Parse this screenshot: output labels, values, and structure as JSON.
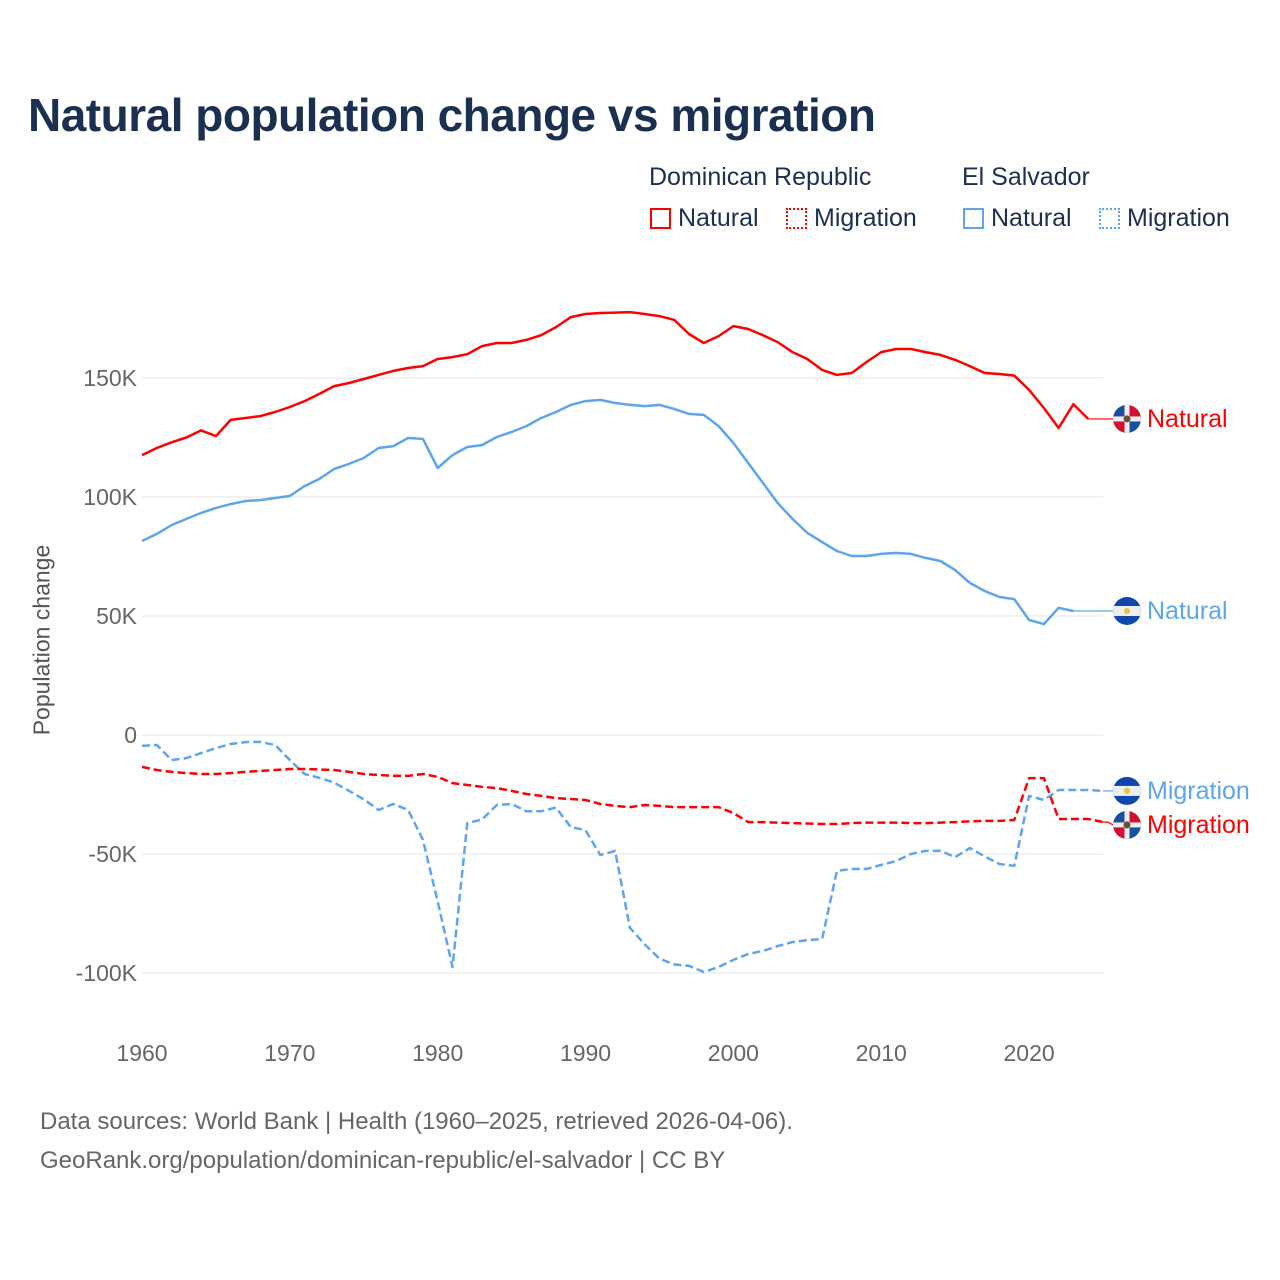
{
  "title": "Natural population change vs migration",
  "legend": {
    "groups": [
      {
        "country": "Dominican Republic",
        "items": [
          "Natural",
          "Migration"
        ]
      },
      {
        "country": "El Salvador",
        "items": [
          "Natural",
          "Migration"
        ]
      }
    ]
  },
  "colors": {
    "dominican_republic": "#ff0000",
    "el_salvador": "#5ea6ea",
    "title": "#1b3050",
    "grid": "#e6e6e6"
  },
  "footer": {
    "line1": "Data sources: World Bank | Health (1960–2025, retrieved 2026-04-06).",
    "line2": "GeoRank.org/population/dominican-republic/el-salvador | CC BY"
  },
  "chart_data": {
    "type": "line",
    "title": "Natural population change vs migration",
    "xlabel": "",
    "ylabel": "Population change",
    "xlim": [
      1960,
      2025
    ],
    "ylim": [
      -110000,
      185000
    ],
    "x_ticks": [
      1960,
      1970,
      1980,
      1990,
      2000,
      2010,
      2020
    ],
    "x_tick_labels": [
      "1960",
      "1970",
      "1980",
      "1990",
      "2000",
      "2010",
      "2020"
    ],
    "y_ticks": [
      150000,
      100000,
      50000,
      0,
      -50000,
      -100000
    ],
    "y_tick_labels": [
      "150K",
      "100K",
      "50K",
      "0",
      "-50K",
      "-100K"
    ],
    "grid": true,
    "legend_position": "top-right",
    "series": [
      {
        "name": "Dominican Republic Natural",
        "label": "Natural",
        "country": "Dominican Republic",
        "color": "#ff0000",
        "dash": false,
        "start": 1960,
        "values": [
          117.6,
          120.6,
          123,
          125,
          128,
          125.6,
          132.4,
          133.2,
          134,
          135.7,
          137.8,
          140.3,
          143.3,
          146.6,
          147.9,
          149.6,
          151.3,
          153,
          154.2,
          155,
          158,
          158.8,
          160,
          163.4,
          164.7,
          164.7,
          166,
          168,
          171.4,
          175.6,
          176.9,
          177.3,
          177.5,
          177.7,
          176.9,
          176,
          174.4,
          168.5,
          164.7,
          167.6,
          171.8,
          170.6,
          168,
          165.1,
          160.9,
          158,
          153.4,
          151.3,
          152.1,
          156.7,
          160.9,
          162.2,
          162.2,
          160.9,
          159.7,
          157.6,
          155,
          152.1,
          151.7,
          151,
          145,
          137.4,
          129,
          139,
          132.8
        ]
      },
      {
        "name": "El Salvador Natural",
        "label": "Natural",
        "country": "El Salvador",
        "color": "#5ea6ea",
        "dash": false,
        "start": 1960,
        "values": [
          81.5,
          84.5,
          88.2,
          90.8,
          93.3,
          95.4,
          97,
          98.3,
          98.7,
          99.6,
          100.4,
          104.6,
          107.6,
          111.8,
          113.9,
          116.4,
          120.6,
          121.4,
          124.8,
          124.4,
          112.2,
          117.6,
          121,
          121.8,
          125.2,
          127.3,
          129.8,
          133.2,
          135.7,
          138.7,
          140.3,
          140.8,
          139.5,
          138.7,
          138.2,
          138.7,
          137,
          134.9,
          134.5,
          129.8,
          122.7,
          114.3,
          105.9,
          97.5,
          90.8,
          84.9,
          81.1,
          77.3,
          75.2,
          75.2,
          76.1,
          76.5,
          76.1,
          74.4,
          73.1,
          69.3,
          63.9,
          60.5,
          58,
          57.1,
          48.3,
          46.6,
          53.4,
          52.1
        ]
      },
      {
        "name": "El Salvador Migration",
        "label": "Migration",
        "country": "El Salvador",
        "color": "#5ea6ea",
        "dash": true,
        "start": 1960,
        "values": [
          -4.6,
          -4.2,
          -10.5,
          -9.7,
          -7.6,
          -5.5,
          -3.8,
          -3.0,
          -2.9,
          -4.2,
          -10.5,
          -16.4,
          -18,
          -20,
          -23.5,
          -27,
          -31.5,
          -29,
          -31.5,
          -44,
          -70,
          -97.5,
          -37,
          -35.5,
          -29.4,
          -29,
          -32,
          -32,
          -30.5,
          -38.7,
          -40,
          -50.4,
          -48.7,
          -81,
          -88,
          -94,
          -96.4,
          -97,
          -99.6,
          -97.5,
          -94.5,
          -92,
          -90.7,
          -88.7,
          -87,
          -86.2,
          -85.7,
          -57.1,
          -56.3,
          -56.3,
          -54.6,
          -53,
          -50,
          -48.7,
          -48.7,
          -51.3,
          -47.5,
          -51,
          -54.2,
          -55,
          -25.6,
          -27.3,
          -23.1,
          -23.1,
          -23.1,
          -23.5
        ]
      },
      {
        "name": "Dominican Republic Migration",
        "label": "Migration",
        "country": "Dominican Republic",
        "color": "#ff0000",
        "dash": true,
        "start": 1960,
        "values": [
          -13.4,
          -14.7,
          -15.5,
          -16,
          -16.4,
          -16.4,
          -16,
          -15.5,
          -15.1,
          -14.7,
          -14.3,
          -14.3,
          -14.5,
          -14.7,
          -15.5,
          -16.4,
          -16.8,
          -17.2,
          -17.2,
          -16.4,
          -17.6,
          -20.2,
          -21,
          -21.8,
          -22.3,
          -23.5,
          -24.8,
          -25.6,
          -26.5,
          -26.9,
          -27.3,
          -29,
          -29.8,
          -30.3,
          -29.4,
          -29.8,
          -30.3,
          -30.3,
          -30.3,
          -30.3,
          -32.8,
          -36.6,
          -36.6,
          -36.8,
          -37,
          -37.2,
          -37.4,
          -37.4,
          -37,
          -36.8,
          -36.8,
          -36.8,
          -37,
          -37,
          -36.8,
          -36.6,
          -36.3,
          -36.1,
          -36.1,
          -35.7,
          -18.1,
          -18.1,
          -35.3,
          -35.3,
          -35.3,
          -36.6
        ]
      }
    ],
    "value_units": "thousands"
  }
}
